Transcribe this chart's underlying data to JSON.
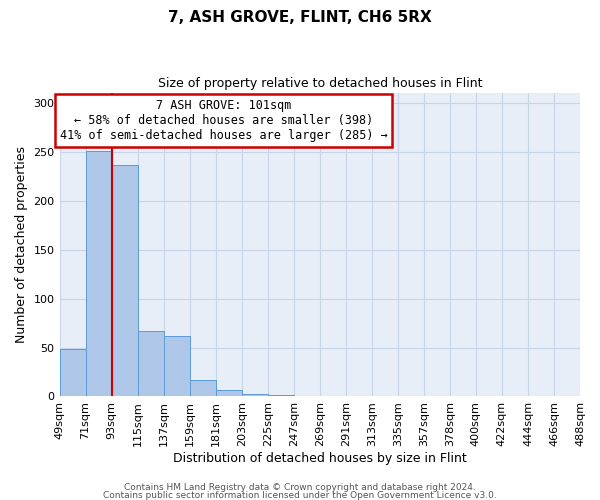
{
  "title": "7, ASH GROVE, FLINT, CH6 5RX",
  "subtitle": "Size of property relative to detached houses in Flint",
  "xlabel": "Distribution of detached houses by size in Flint",
  "ylabel": "Number of detached properties",
  "bar_values": [
    48,
    251,
    237,
    67,
    62,
    17,
    7,
    3,
    1,
    0,
    0,
    0,
    0,
    0,
    0,
    0,
    0,
    0,
    0,
    0
  ],
  "bar_labels": [
    "49sqm",
    "71sqm",
    "93sqm",
    "115sqm",
    "137sqm",
    "159sqm",
    "181sqm",
    "203sqm",
    "225sqm",
    "247sqm",
    "269sqm",
    "291sqm",
    "313sqm",
    "335sqm",
    "357sqm",
    "378sqm",
    "400sqm",
    "422sqm",
    "444sqm",
    "466sqm",
    "488sqm"
  ],
  "bar_color": "#aec6e8",
  "bar_edge_color": "#5b9bd5",
  "vline_x": 2.0,
  "vline_color": "#cc0000",
  "annotation_title": "7 ASH GROVE: 101sqm",
  "annotation_line1": "← 58% of detached houses are smaller (398)",
  "annotation_line2": "41% of semi-detached houses are larger (285) →",
  "annotation_box_color": "#ffffff",
  "annotation_box_edge_color": "#cc0000",
  "ylim": [
    0,
    310
  ],
  "yticks": [
    0,
    50,
    100,
    150,
    200,
    250,
    300
  ],
  "footer1": "Contains HM Land Registry data © Crown copyright and database right 2024.",
  "footer2": "Contains public sector information licensed under the Open Government Licence v3.0.",
  "axes_bg_color": "#e8eef7",
  "fig_bg_color": "#ffffff",
  "grid_color": "#c8d4e8",
  "title_fontsize": 11,
  "subtitle_fontsize": 9,
  "xlabel_fontsize": 9,
  "ylabel_fontsize": 9,
  "tick_fontsize": 8,
  "annot_fontsize": 8.5,
  "footer_fontsize": 6.5
}
